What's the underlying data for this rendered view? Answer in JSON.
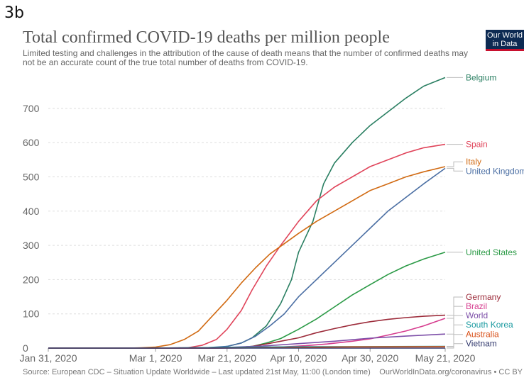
{
  "figure_label": "3b",
  "logo_text": [
    "Our World",
    "in Data"
  ],
  "footer": {
    "source": "Source: European CDC – Situation Update Worldwide – Last updated 21st May, 11:00 (London time)",
    "attribution": "OurWorldInData.org/coronavirus • CC BY"
  },
  "chart_data": {
    "type": "line",
    "title": "Total confirmed COVID-19 deaths per million people",
    "subtitle": "Limited testing and challenges in the attribution of the cause of death means that the number of confirmed deaths may not be an accurate count of the true total number of deaths from COVID-19.",
    "xlabel": "",
    "ylabel": "",
    "x_range": [
      "2020-01-31",
      "2020-05-21"
    ],
    "ylim": [
      0,
      800
    ],
    "y_ticks": [
      0,
      100,
      200,
      300,
      400,
      500,
      600,
      700
    ],
    "x_ticks": [
      {
        "date": "2020-01-31",
        "label": "Jan 31, 2020"
      },
      {
        "date": "2020-03-01",
        "label": "Mar 1, 2020"
      },
      {
        "date": "2020-03-21",
        "label": "Mar 21, 2020"
      },
      {
        "date": "2020-04-10",
        "label": "Apr 10, 2020"
      },
      {
        "date": "2020-04-30",
        "label": "Apr 30, 2020"
      },
      {
        "date": "2020-05-21",
        "label": "May 21, 2020"
      }
    ],
    "grid": "horizontal dashed",
    "legend": "direct labels at line ends (right)",
    "series": [
      {
        "name": "Belgium",
        "color": "#2a7f62",
        "points": [
          [
            "2020-01-31",
            0
          ],
          [
            "2020-03-10",
            0
          ],
          [
            "2020-03-18",
            1
          ],
          [
            "2020-03-21",
            5
          ],
          [
            "2020-03-25",
            15
          ],
          [
            "2020-03-28",
            30
          ],
          [
            "2020-04-01",
            65
          ],
          [
            "2020-04-05",
            130
          ],
          [
            "2020-04-08",
            200
          ],
          [
            "2020-04-10",
            280
          ],
          [
            "2020-04-14",
            370
          ],
          [
            "2020-04-17",
            480
          ],
          [
            "2020-04-20",
            540
          ],
          [
            "2020-04-25",
            600
          ],
          [
            "2020-04-30",
            650
          ],
          [
            "2020-05-05",
            690
          ],
          [
            "2020-05-10",
            730
          ],
          [
            "2020-05-15",
            765
          ],
          [
            "2020-05-21",
            790
          ]
        ]
      },
      {
        "name": "Spain",
        "color": "#e0445a",
        "points": [
          [
            "2020-01-31",
            0
          ],
          [
            "2020-03-05",
            0
          ],
          [
            "2020-03-10",
            1
          ],
          [
            "2020-03-14",
            8
          ],
          [
            "2020-03-18",
            25
          ],
          [
            "2020-03-21",
            55
          ],
          [
            "2020-03-25",
            110
          ],
          [
            "2020-03-28",
            170
          ],
          [
            "2020-04-01",
            240
          ],
          [
            "2020-04-05",
            300
          ],
          [
            "2020-04-10",
            370
          ],
          [
            "2020-04-15",
            430
          ],
          [
            "2020-04-20",
            470
          ],
          [
            "2020-04-25",
            500
          ],
          [
            "2020-04-30",
            530
          ],
          [
            "2020-05-05",
            550
          ],
          [
            "2020-05-10",
            570
          ],
          [
            "2020-05-15",
            585
          ],
          [
            "2020-05-21",
            595
          ]
        ]
      },
      {
        "name": "Italy",
        "color": "#d16a12",
        "points": [
          [
            "2020-01-31",
            0
          ],
          [
            "2020-02-22",
            0
          ],
          [
            "2020-02-26",
            1
          ],
          [
            "2020-03-01",
            3
          ],
          [
            "2020-03-05",
            10
          ],
          [
            "2020-03-09",
            25
          ],
          [
            "2020-03-13",
            50
          ],
          [
            "2020-03-17",
            95
          ],
          [
            "2020-03-21",
            140
          ],
          [
            "2020-03-25",
            190
          ],
          [
            "2020-03-29",
            235
          ],
          [
            "2020-04-02",
            275
          ],
          [
            "2020-04-06",
            305
          ],
          [
            "2020-04-10",
            335
          ],
          [
            "2020-04-15",
            370
          ],
          [
            "2020-04-20",
            400
          ],
          [
            "2020-04-25",
            430
          ],
          [
            "2020-04-30",
            460
          ],
          [
            "2020-05-05",
            480
          ],
          [
            "2020-05-10",
            500
          ],
          [
            "2020-05-15",
            515
          ],
          [
            "2020-05-21",
            530
          ]
        ]
      },
      {
        "name": "United Kingdom",
        "color": "#4a6ea3",
        "points": [
          [
            "2020-01-31",
            0
          ],
          [
            "2020-03-10",
            0
          ],
          [
            "2020-03-15",
            1
          ],
          [
            "2020-03-21",
            5
          ],
          [
            "2020-03-25",
            15
          ],
          [
            "2020-03-29",
            35
          ],
          [
            "2020-04-02",
            65
          ],
          [
            "2020-04-06",
            100
          ],
          [
            "2020-04-10",
            150
          ],
          [
            "2020-04-14",
            190
          ],
          [
            "2020-04-18",
            230
          ],
          [
            "2020-04-22",
            270
          ],
          [
            "2020-04-26",
            310
          ],
          [
            "2020-04-30",
            350
          ],
          [
            "2020-05-05",
            400
          ],
          [
            "2020-05-10",
            440
          ],
          [
            "2020-05-15",
            480
          ],
          [
            "2020-05-21",
            525
          ]
        ]
      },
      {
        "name": "United States",
        "color": "#2b9a46",
        "points": [
          [
            "2020-01-31",
            0
          ],
          [
            "2020-03-18",
            0
          ],
          [
            "2020-03-23",
            1
          ],
          [
            "2020-03-28",
            5
          ],
          [
            "2020-04-01",
            15
          ],
          [
            "2020-04-05",
            28
          ],
          [
            "2020-04-10",
            55
          ],
          [
            "2020-04-15",
            85
          ],
          [
            "2020-04-20",
            120
          ],
          [
            "2020-04-25",
            155
          ],
          [
            "2020-04-30",
            185
          ],
          [
            "2020-05-05",
            215
          ],
          [
            "2020-05-10",
            240
          ],
          [
            "2020-05-15",
            260
          ],
          [
            "2020-05-21",
            280
          ]
        ]
      },
      {
        "name": "Germany",
        "color": "#9c2b3a",
        "points": [
          [
            "2020-01-31",
            0
          ],
          [
            "2020-03-18",
            0
          ],
          [
            "2020-03-23",
            1
          ],
          [
            "2020-03-28",
            5
          ],
          [
            "2020-04-01",
            12
          ],
          [
            "2020-04-05",
            20
          ],
          [
            "2020-04-10",
            30
          ],
          [
            "2020-04-15",
            45
          ],
          [
            "2020-04-20",
            57
          ],
          [
            "2020-04-25",
            68
          ],
          [
            "2020-04-30",
            77
          ],
          [
            "2020-05-05",
            84
          ],
          [
            "2020-05-10",
            89
          ],
          [
            "2020-05-15",
            93
          ],
          [
            "2020-05-21",
            96
          ]
        ]
      },
      {
        "name": "Brazil",
        "color": "#d63c8e",
        "points": [
          [
            "2020-01-31",
            0
          ],
          [
            "2020-03-20",
            0
          ],
          [
            "2020-03-28",
            1
          ],
          [
            "2020-04-05",
            3
          ],
          [
            "2020-04-12",
            7
          ],
          [
            "2020-04-18",
            12
          ],
          [
            "2020-04-25",
            20
          ],
          [
            "2020-04-30",
            27
          ],
          [
            "2020-05-05",
            38
          ],
          [
            "2020-05-10",
            50
          ],
          [
            "2020-05-15",
            65
          ],
          [
            "2020-05-21",
            87
          ]
        ]
      },
      {
        "name": "World",
        "color": "#7d4fa8",
        "points": [
          [
            "2020-01-31",
            0
          ],
          [
            "2020-03-01",
            0
          ],
          [
            "2020-03-10",
            1
          ],
          [
            "2020-03-21",
            2
          ],
          [
            "2020-03-31",
            6
          ],
          [
            "2020-04-10",
            13
          ],
          [
            "2020-04-20",
            20
          ],
          [
            "2020-04-30",
            29
          ],
          [
            "2020-05-10",
            35
          ],
          [
            "2020-05-21",
            41
          ]
        ]
      },
      {
        "name": "South Korea",
        "color": "#1a9aa0",
        "points": [
          [
            "2020-01-31",
            0
          ],
          [
            "2020-02-25",
            0
          ],
          [
            "2020-03-05",
            0.5
          ],
          [
            "2020-03-21",
            2
          ],
          [
            "2020-04-10",
            4
          ],
          [
            "2020-05-21",
            5
          ]
        ]
      },
      {
        "name": "Australia",
        "color": "#d84e16",
        "points": [
          [
            "2020-01-31",
            0
          ],
          [
            "2020-03-10",
            0
          ],
          [
            "2020-03-25",
            0.5
          ],
          [
            "2020-04-10",
            2
          ],
          [
            "2020-04-25",
            3.5
          ],
          [
            "2020-05-21",
            4
          ]
        ]
      },
      {
        "name": "Vietnam",
        "color": "#333a6e",
        "points": [
          [
            "2020-01-31",
            0
          ],
          [
            "2020-05-21",
            0
          ]
        ]
      }
    ],
    "end_labels": [
      {
        "name": "Belgium",
        "value": 790,
        "label_value": 790
      },
      {
        "name": "Spain",
        "value": 595,
        "label_value": 595
      },
      {
        "name": "Italy",
        "value": 530,
        "label_value": 544
      },
      {
        "name": "United Kingdom",
        "value": 525,
        "label_value": 517
      },
      {
        "name": "United States",
        "value": 280,
        "label_value": 280
      },
      {
        "name": "Germany",
        "value": 96,
        "label_value": 149
      },
      {
        "name": "Brazil",
        "value": 87,
        "label_value": 122
      },
      {
        "name": "World",
        "value": 41,
        "label_value": 95
      },
      {
        "name": "South Korea",
        "value": 5,
        "label_value": 68
      },
      {
        "name": "Australia",
        "value": 4,
        "label_value": 40
      },
      {
        "name": "Vietnam",
        "value": 0,
        "label_value": 13
      }
    ]
  }
}
